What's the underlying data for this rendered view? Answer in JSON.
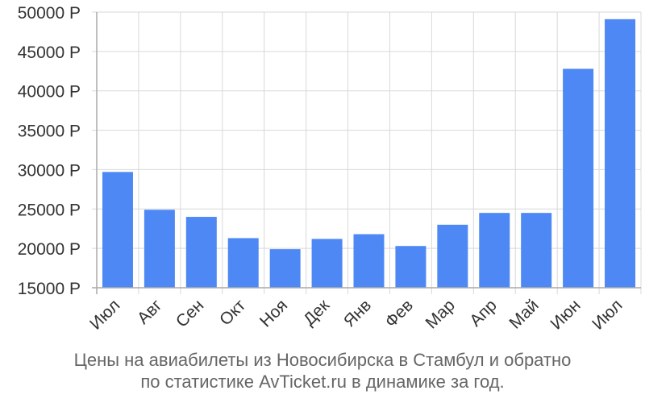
{
  "caption": {
    "line1": "Цены на авиабилеты из Новосибирска в Стамбул и обратно",
    "line2": "по статистике AvTicket.ru в динамике за год."
  },
  "colors": {
    "bar": "#4d88f5",
    "grid": "#d9d9d9",
    "axis": "#aaaaaa",
    "text": "#666666"
  },
  "chart_data": {
    "type": "bar",
    "categories": [
      "Июл",
      "Авг",
      "Сен",
      "Окт",
      "Ноя",
      "Дек",
      "Янв",
      "Фев",
      "Мар",
      "Апр",
      "Май",
      "Июн",
      "Июл"
    ],
    "values": [
      29700,
      24900,
      24000,
      21300,
      19900,
      21200,
      21800,
      20300,
      23000,
      24500,
      24500,
      42800,
      49100
    ],
    "ylim": [
      15000,
      50000
    ],
    "yticks": [
      15000,
      20000,
      25000,
      30000,
      35000,
      40000,
      45000,
      50000
    ],
    "ytick_labels": [
      "15000 Р",
      "20000 Р",
      "25000 Р",
      "30000 Р",
      "35000 Р",
      "40000 Р",
      "45000 Р",
      "50000 Р"
    ],
    "title": "Цены на авиабилеты из Новосибирска в Стамбул и обратно по статистике AvTicket.ru в динамике за год.",
    "xlabel": "",
    "ylabel": "",
    "grid": true,
    "legend": "none"
  }
}
